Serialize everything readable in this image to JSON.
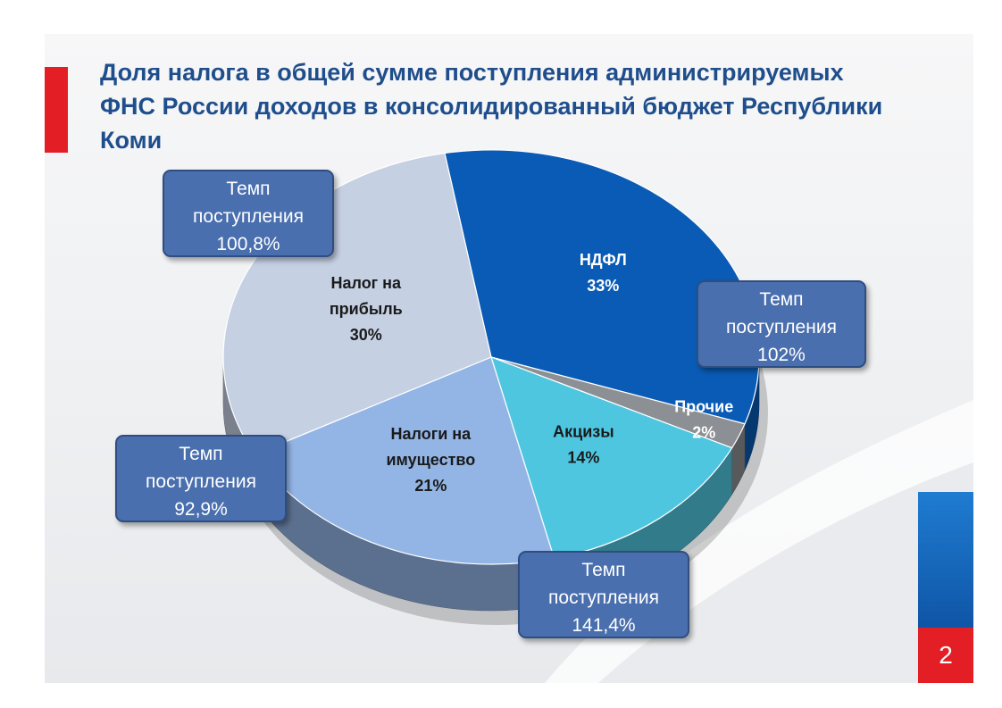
{
  "title": "Доля налога в общей сумме поступления администрируемых ФНС России доходов в консолидированный бюджет Республики Коми",
  "page_number": "2",
  "colors": {
    "accent_red": "#e31e24",
    "title_blue": "#1f4e8c",
    "callout_fill": "#4a6fae"
  },
  "chart_data": {
    "type": "pie",
    "style": "3d",
    "slices": [
      {
        "label_lines": [
          "НДФЛ"
        ],
        "value": 33,
        "value_label": "33%",
        "color": "#0a5bb5"
      },
      {
        "label_lines": [
          "Прочие"
        ],
        "value": 2,
        "value_label": "2%",
        "color": "#8c8f93"
      },
      {
        "label_lines": [
          "Акцизы"
        ],
        "value": 14,
        "value_label": "14%",
        "color": "#4fc6e0"
      },
      {
        "label_lines": [
          "Налоги на",
          "имущество"
        ],
        "value": 21,
        "value_label": "21%",
        "color": "#93b5e6"
      },
      {
        "label_lines": [
          "Налог на",
          "прибыль"
        ],
        "value": 30,
        "value_label": "30%",
        "color": "#c5d0e3"
      }
    ],
    "callouts": [
      {
        "lines": [
          "Темп",
          "поступления",
          "100,8%"
        ],
        "slice": "Налог на прибыль"
      },
      {
        "lines": [
          "Темп",
          "поступления",
          "102%"
        ],
        "slice": "НДФЛ"
      },
      {
        "lines": [
          "Темп",
          "поступления",
          "92,9%"
        ],
        "slice": "Налоги на имущество"
      },
      {
        "lines": [
          "Темп",
          "поступления",
          "141,4%"
        ],
        "slice": "Акцизы"
      }
    ]
  }
}
